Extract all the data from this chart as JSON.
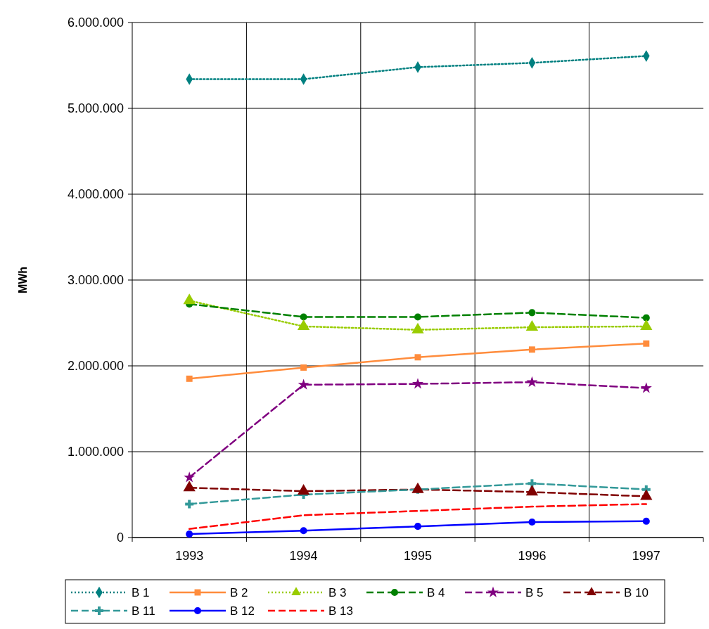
{
  "chart_data": {
    "type": "line",
    "ylabel": "MWh",
    "categories": [
      "1993",
      "1994",
      "1995",
      "1996",
      "1997"
    ],
    "ylim": [
      0,
      6000000
    ],
    "yticks": [
      {
        "value": 0,
        "label": "0"
      },
      {
        "value": 1000000,
        "label": "1.000.000"
      },
      {
        "value": 2000000,
        "label": "2.000.000"
      },
      {
        "value": 3000000,
        "label": "3.000.000"
      },
      {
        "value": 4000000,
        "label": "4.000.000"
      },
      {
        "value": 5000000,
        "label": "5.000.000"
      },
      {
        "value": 6000000,
        "label": "6.000.000"
      }
    ],
    "grid": true,
    "legend": "bottom",
    "series": [
      {
        "name": "B 1",
        "color": "#008080",
        "marker": "diamond",
        "line_style": "dotted",
        "values": [
          5340000,
          5340000,
          5480000,
          5530000,
          5610000
        ]
      },
      {
        "name": "B 2",
        "color": "#ff8c3c",
        "marker": "square",
        "line_style": "solid",
        "values": [
          1850000,
          1980000,
          2100000,
          2190000,
          2260000
        ]
      },
      {
        "name": "B 3",
        "color": "#99cc00",
        "marker": "triangle",
        "line_style": "dotted",
        "values": [
          2760000,
          2460000,
          2420000,
          2450000,
          2460000
        ]
      },
      {
        "name": "B 4",
        "color": "#008000",
        "marker": "circle",
        "line_style": "dashed",
        "values": [
          2720000,
          2570000,
          2570000,
          2620000,
          2560000
        ]
      },
      {
        "name": "B 5",
        "color": "#800080",
        "marker": "star",
        "line_style": "dashed",
        "values": [
          700000,
          1780000,
          1790000,
          1810000,
          1740000
        ]
      },
      {
        "name": "B 10",
        "color": "#800000",
        "marker": "triangle",
        "line_style": "dashed",
        "values": [
          580000,
          540000,
          560000,
          530000,
          480000
        ]
      },
      {
        "name": "B 11",
        "color": "#339999",
        "marker": "cross",
        "line_style": "dashed",
        "values": [
          390000,
          500000,
          560000,
          630000,
          560000
        ]
      },
      {
        "name": "B 12",
        "color": "#0000ff",
        "marker": "circle",
        "line_style": "solid",
        "values": [
          40000,
          80000,
          130000,
          180000,
          190000
        ]
      },
      {
        "name": "B 13",
        "color": "#ff0000",
        "marker": "none",
        "line_style": "dashed",
        "values": [
          100000,
          260000,
          310000,
          360000,
          390000
        ]
      }
    ]
  }
}
